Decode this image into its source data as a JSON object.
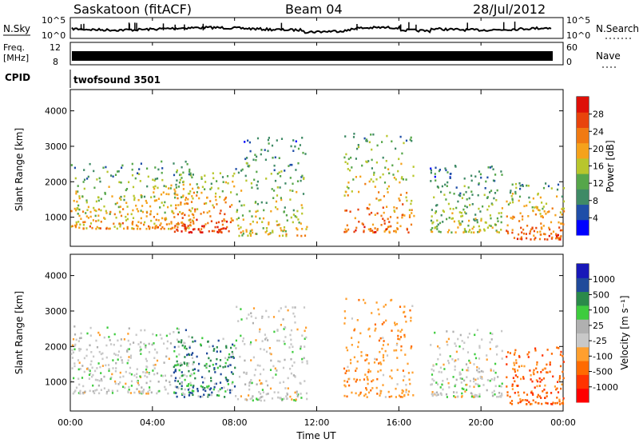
{
  "header": {
    "station": "Saskatoon (fitACF)",
    "beam": "Beam 04",
    "date": "28/Jul/2012"
  },
  "top_panels": {
    "nsky_label": "N.Sky",
    "nsearch_label": "N.Search",
    "noise_ticks": [
      "10^5",
      "10^0"
    ],
    "freq_label_1": "Freq.",
    "freq_label_2": "[MHz]",
    "freq_ticks": [
      "12",
      "8"
    ],
    "nave_label": "Nave",
    "nave_ticks": [
      "60",
      "0"
    ],
    "cpid_label": "CPID",
    "cpid_value": "twofsound 3501"
  },
  "colors": {
    "power": [
      "#0000ff",
      "#1f4ea8",
      "#3f8a66",
      "#56a64a",
      "#b8c62c",
      "#f5a21b",
      "#f07a12",
      "#e8440c",
      "#de1008"
    ],
    "velocity": [
      "#ff0000",
      "#ff3300",
      "#ff6a00",
      "#ff9f2e",
      "#c8c8c8",
      "#b0b0b0",
      "#3ecc3e",
      "#2a8a4a",
      "#204a9a",
      "#1818b8"
    ]
  },
  "chart_data": [
    {
      "type": "heatmap",
      "title": "Power",
      "ylabel": "Slant Range [km]",
      "xlabel": "",
      "ylim": [
        180,
        4600
      ],
      "yticks": [
        1000,
        2000,
        3000,
        4000
      ],
      "colorbar_label": "Power [dB]",
      "colorbar_ticks": [
        "4",
        "8",
        "12",
        "16",
        "20",
        "24",
        "28"
      ],
      "colorbar_range": [
        0,
        32
      ],
      "echo_bands_hours": [
        {
          "start": 0.0,
          "end": 6.0,
          "range_min": 700,
          "range_max": 2600,
          "peak_db": 22
        },
        {
          "start": 5.0,
          "end": 8.0,
          "range_min": 600,
          "range_max": 2300,
          "peak_db": 30
        },
        {
          "start": 8.0,
          "end": 11.5,
          "range_min": 500,
          "range_max": 3300,
          "peak_db": 18
        },
        {
          "start": 13.3,
          "end": 16.7,
          "range_min": 600,
          "range_max": 3400,
          "peak_db": 26
        },
        {
          "start": 17.5,
          "end": 21.0,
          "range_min": 600,
          "range_max": 2500,
          "peak_db": 16
        },
        {
          "start": 21.2,
          "end": 24.0,
          "range_min": 400,
          "range_max": 2000,
          "peak_db": 28
        }
      ]
    },
    {
      "type": "heatmap",
      "title": "Velocity",
      "ylabel": "Slant Range [km]",
      "xlabel": "Time UT",
      "x_ticks": [
        "00:00",
        "04:00",
        "08:00",
        "12:00",
        "16:00",
        "20:00",
        "00:00"
      ],
      "ylim": [
        180,
        4600
      ],
      "yticks": [
        1000,
        2000,
        3000,
        4000
      ],
      "colorbar_label": "Velocity [m s⁻¹]",
      "colorbar_ticks": [
        "-1000",
        "-500",
        "-100",
        "-25",
        "25",
        "100",
        "500",
        "1000"
      ],
      "colorbar_range": [
        -1500,
        1500
      ]
    }
  ]
}
